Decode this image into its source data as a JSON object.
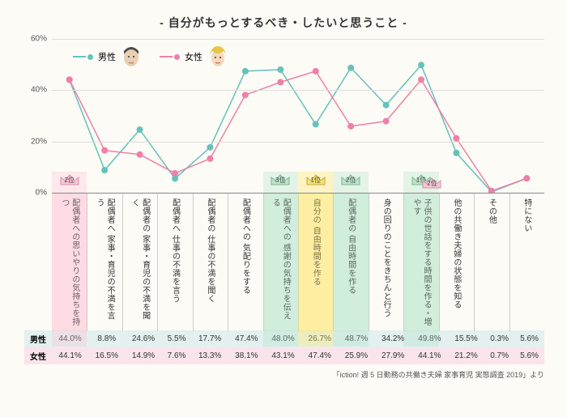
{
  "title": "- 自分がもっとするべき・したいと思うこと -",
  "legend": {
    "male_label": "男性",
    "female_label": "女性",
    "male_color": "#66c1bb",
    "female_color": "#ee7fa8"
  },
  "chart": {
    "type": "line",
    "ylim": [
      0,
      60
    ],
    "yticks": [
      0,
      20,
      40,
      60
    ],
    "grid_color": "#dddddd",
    "background_color": "#fdfbf6",
    "categories": [
      "配偶者への思いやりの気持ちを持つ",
      "配偶者へ 家事・育児の不満を言う",
      "配偶者の 家事・育児の不満を聞く",
      "配偶者へ 仕事の不満を言う",
      "配偶者の 仕事の不満を聞く",
      "配偶者への 気配りをする",
      "配偶者への 感謝の気持ちを伝える",
      "自分の 自由時間を作る",
      "配偶者の 自由時間を作る",
      "身の回りのことをきちんと行う",
      "子供の世話をする時間を作る・増やす",
      "他の共働き夫婦の状態を知る",
      "その他",
      "特にない"
    ],
    "series": [
      {
        "name": "男性",
        "color": "#66c1bb",
        "values": [
          44.0,
          8.8,
          24.6,
          5.5,
          17.7,
          47.4,
          48.0,
          26.7,
          48.7,
          34.2,
          49.8,
          15.5,
          0.3,
          5.6
        ]
      },
      {
        "name": "女性",
        "color": "#ee7fa8",
        "values": [
          44.1,
          16.5,
          14.9,
          7.6,
          13.3,
          38.1,
          43.1,
          47.4,
          25.9,
          27.9,
          44.1,
          21.2,
          0.7,
          5.6
        ]
      }
    ],
    "highlights": [
      {
        "col": 0,
        "kind": "pink",
        "rank": "2位"
      },
      {
        "col": 6,
        "kind": "green",
        "rank": "3位"
      },
      {
        "col": 7,
        "kind": "yellow",
        "rank": "1位"
      },
      {
        "col": 8,
        "kind": "green",
        "rank": "2位"
      },
      {
        "col": 10,
        "kind": "green",
        "rank": "1位",
        "pair_rank": "2位"
      }
    ],
    "marker_size": 4,
    "line_width": 1.5,
    "label_fontsize": 10
  },
  "table": {
    "row_labels": [
      "男性",
      "女性"
    ],
    "row_colors": [
      "#e3f0ef",
      "#f9e4ec"
    ],
    "rows": [
      [
        "44.0%",
        "8.8%",
        "24.6%",
        "5.5%",
        "17.7%",
        "47.4%",
        "48.0%",
        "26.7%",
        "48.7%",
        "34.2%",
        "49.8%",
        "15.5%",
        "0.3%",
        "5.6%"
      ],
      [
        "44.1%",
        "16.5%",
        "14.9%",
        "7.6%",
        "13.3%",
        "38.1%",
        "43.1%",
        "47.4%",
        "25.9%",
        "27.9%",
        "44.1%",
        "21.2%",
        "0.7%",
        "5.6%"
      ]
    ]
  },
  "source": "「iction! 週 5 日勤務の共働き夫婦 家事育児 実態調査 2019」より"
}
